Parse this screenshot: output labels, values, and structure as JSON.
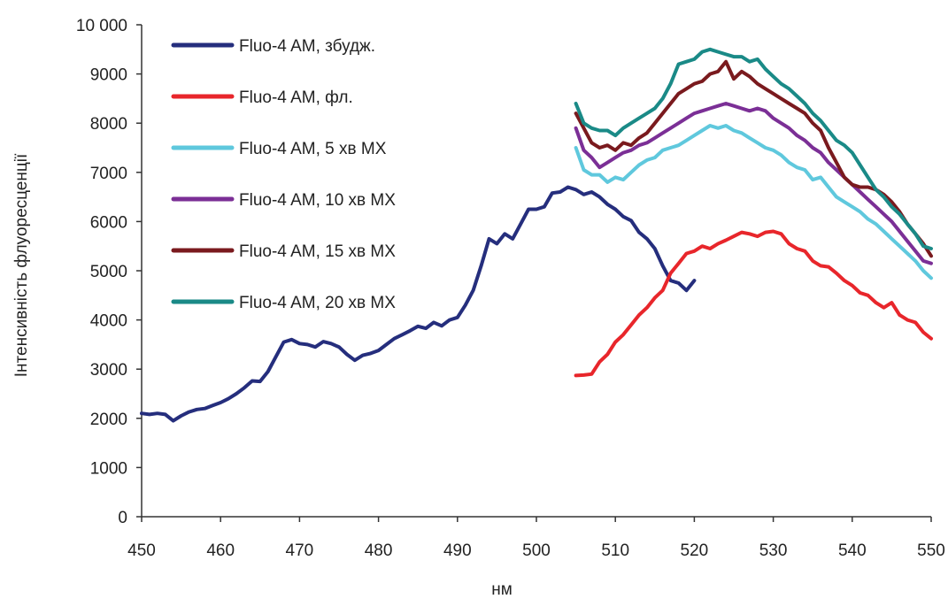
{
  "chart_data": {
    "type": "line",
    "title": "",
    "xlabel": "нм",
    "ylabel": "Інтенсивність флуоресценції",
    "xlim": [
      450,
      550
    ],
    "ylim": [
      0,
      10000
    ],
    "x_ticks": [
      "450",
      "460",
      "470",
      "480",
      "490",
      "500",
      "510",
      "520",
      "530",
      "540",
      "550"
    ],
    "y_ticks": [
      "0",
      "1000",
      "2000",
      "3000",
      "4000",
      "5000",
      "6000",
      "7000",
      "8000",
      "9000",
      "10 000"
    ],
    "grid": false,
    "legend_position": "top-left",
    "series": [
      {
        "name": "Fluo-4 AM, збудж.",
        "color": "#252e7d",
        "points": [
          [
            450,
            2100
          ],
          [
            451,
            2080
          ],
          [
            452,
            2100
          ],
          [
            453,
            2080
          ],
          [
            454,
            1950
          ],
          [
            455,
            2050
          ],
          [
            456,
            2130
          ],
          [
            457,
            2180
          ],
          [
            458,
            2200
          ],
          [
            459,
            2260
          ],
          [
            460,
            2320
          ],
          [
            461,
            2400
          ],
          [
            462,
            2500
          ],
          [
            463,
            2620
          ],
          [
            464,
            2760
          ],
          [
            465,
            2750
          ],
          [
            466,
            2950
          ],
          [
            467,
            3250
          ],
          [
            468,
            3550
          ],
          [
            469,
            3600
          ],
          [
            470,
            3520
          ],
          [
            471,
            3500
          ],
          [
            472,
            3450
          ],
          [
            473,
            3560
          ],
          [
            474,
            3520
          ],
          [
            475,
            3450
          ],
          [
            476,
            3300
          ],
          [
            477,
            3180
          ],
          [
            478,
            3280
          ],
          [
            479,
            3320
          ],
          [
            480,
            3380
          ],
          [
            481,
            3500
          ],
          [
            482,
            3620
          ],
          [
            483,
            3700
          ],
          [
            484,
            3780
          ],
          [
            485,
            3870
          ],
          [
            486,
            3830
          ],
          [
            487,
            3950
          ],
          [
            488,
            3880
          ],
          [
            489,
            4000
          ],
          [
            490,
            4050
          ],
          [
            491,
            4300
          ],
          [
            492,
            4600
          ],
          [
            493,
            5100
          ],
          [
            494,
            5650
          ],
          [
            495,
            5550
          ],
          [
            496,
            5750
          ],
          [
            497,
            5650
          ],
          [
            498,
            5950
          ],
          [
            499,
            6250
          ],
          [
            500,
            6250
          ],
          [
            501,
            6300
          ],
          [
            502,
            6580
          ],
          [
            503,
            6600
          ],
          [
            504,
            6700
          ],
          [
            505,
            6650
          ],
          [
            506,
            6550
          ],
          [
            507,
            6600
          ],
          [
            508,
            6500
          ],
          [
            509,
            6350
          ],
          [
            510,
            6250
          ],
          [
            511,
            6100
          ],
          [
            512,
            6020
          ],
          [
            513,
            5780
          ],
          [
            514,
            5650
          ],
          [
            515,
            5450
          ],
          [
            516,
            5100
          ],
          [
            517,
            4800
          ],
          [
            518,
            4750
          ],
          [
            519,
            4600
          ],
          [
            520,
            4800
          ]
        ]
      },
      {
        "name": "Fluo-4 AM, фл.",
        "color": "#e8262b",
        "points": [
          [
            505,
            2870
          ],
          [
            506,
            2880
          ],
          [
            507,
            2900
          ],
          [
            508,
            3150
          ],
          [
            509,
            3300
          ],
          [
            510,
            3550
          ],
          [
            511,
            3700
          ],
          [
            512,
            3900
          ],
          [
            513,
            4100
          ],
          [
            514,
            4250
          ],
          [
            515,
            4450
          ],
          [
            516,
            4600
          ],
          [
            517,
            4950
          ],
          [
            518,
            5150
          ],
          [
            519,
            5350
          ],
          [
            520,
            5400
          ],
          [
            521,
            5500
          ],
          [
            522,
            5450
          ],
          [
            523,
            5550
          ],
          [
            524,
            5620
          ],
          [
            525,
            5700
          ],
          [
            526,
            5780
          ],
          [
            527,
            5750
          ],
          [
            528,
            5700
          ],
          [
            529,
            5780
          ],
          [
            530,
            5800
          ],
          [
            531,
            5750
          ],
          [
            532,
            5550
          ],
          [
            533,
            5450
          ],
          [
            534,
            5400
          ],
          [
            535,
            5200
          ],
          [
            536,
            5100
          ],
          [
            537,
            5080
          ],
          [
            538,
            4950
          ],
          [
            539,
            4800
          ],
          [
            540,
            4700
          ],
          [
            541,
            4550
          ],
          [
            542,
            4500
          ],
          [
            543,
            4350
          ],
          [
            544,
            4250
          ],
          [
            545,
            4350
          ],
          [
            546,
            4100
          ],
          [
            547,
            4000
          ],
          [
            548,
            3950
          ],
          [
            549,
            3750
          ],
          [
            550,
            3620
          ]
        ]
      },
      {
        "name": "Fluo-4 AM, 5 хв MX",
        "color": "#5fc8dd",
        "points": [
          [
            505,
            7500
          ],
          [
            506,
            7050
          ],
          [
            507,
            6950
          ],
          [
            508,
            6950
          ],
          [
            509,
            6800
          ],
          [
            510,
            6900
          ],
          [
            511,
            6850
          ],
          [
            512,
            7000
          ],
          [
            513,
            7150
          ],
          [
            514,
            7250
          ],
          [
            515,
            7300
          ],
          [
            516,
            7450
          ],
          [
            517,
            7500
          ],
          [
            518,
            7550
          ],
          [
            519,
            7650
          ],
          [
            520,
            7750
          ],
          [
            521,
            7850
          ],
          [
            522,
            7950
          ],
          [
            523,
            7900
          ],
          [
            524,
            7950
          ],
          [
            525,
            7850
          ],
          [
            526,
            7800
          ],
          [
            527,
            7700
          ],
          [
            528,
            7600
          ],
          [
            529,
            7500
          ],
          [
            530,
            7450
          ],
          [
            531,
            7350
          ],
          [
            532,
            7200
          ],
          [
            533,
            7100
          ],
          [
            534,
            7050
          ],
          [
            535,
            6850
          ],
          [
            536,
            6900
          ],
          [
            537,
            6700
          ],
          [
            538,
            6500
          ],
          [
            539,
            6400
          ],
          [
            540,
            6300
          ],
          [
            541,
            6200
          ],
          [
            542,
            6050
          ],
          [
            543,
            5950
          ],
          [
            544,
            5800
          ],
          [
            545,
            5650
          ],
          [
            546,
            5500
          ],
          [
            547,
            5350
          ],
          [
            548,
            5200
          ],
          [
            549,
            5000
          ],
          [
            550,
            4850
          ]
        ]
      },
      {
        "name": "Fluo-4 AM, 10 хв MX",
        "color": "#7b2f96",
        "points": [
          [
            505,
            7900
          ],
          [
            506,
            7450
          ],
          [
            507,
            7300
          ],
          [
            508,
            7100
          ],
          [
            509,
            7200
          ],
          [
            510,
            7300
          ],
          [
            511,
            7400
          ],
          [
            512,
            7450
          ],
          [
            513,
            7550
          ],
          [
            514,
            7600
          ],
          [
            515,
            7700
          ],
          [
            516,
            7800
          ],
          [
            517,
            7900
          ],
          [
            518,
            8000
          ],
          [
            519,
            8100
          ],
          [
            520,
            8200
          ],
          [
            521,
            8250
          ],
          [
            522,
            8300
          ],
          [
            523,
            8350
          ],
          [
            524,
            8400
          ],
          [
            525,
            8350
          ],
          [
            526,
            8300
          ],
          [
            527,
            8250
          ],
          [
            528,
            8300
          ],
          [
            529,
            8250
          ],
          [
            530,
            8100
          ],
          [
            531,
            8000
          ],
          [
            532,
            7900
          ],
          [
            533,
            7750
          ],
          [
            534,
            7650
          ],
          [
            535,
            7500
          ],
          [
            536,
            7400
          ],
          [
            537,
            7200
          ],
          [
            538,
            7050
          ],
          [
            539,
            6900
          ],
          [
            540,
            6750
          ],
          [
            541,
            6600
          ],
          [
            542,
            6450
          ],
          [
            543,
            6300
          ],
          [
            544,
            6150
          ],
          [
            545,
            6000
          ],
          [
            546,
            5800
          ],
          [
            547,
            5600
          ],
          [
            548,
            5400
          ],
          [
            549,
            5200
          ],
          [
            550,
            5150
          ]
        ]
      },
      {
        "name": "Fluo-4 AM, 15 хв MX",
        "color": "#7a1a1e",
        "points": [
          [
            505,
            8200
          ],
          [
            506,
            7900
          ],
          [
            507,
            7600
          ],
          [
            508,
            7500
          ],
          [
            509,
            7550
          ],
          [
            510,
            7450
          ],
          [
            511,
            7600
          ],
          [
            512,
            7550
          ],
          [
            513,
            7700
          ],
          [
            514,
            7800
          ],
          [
            515,
            8000
          ],
          [
            516,
            8200
          ],
          [
            517,
            8400
          ],
          [
            518,
            8600
          ],
          [
            519,
            8700
          ],
          [
            520,
            8800
          ],
          [
            521,
            8850
          ],
          [
            522,
            9000
          ],
          [
            523,
            9050
          ],
          [
            524,
            9250
          ],
          [
            525,
            8900
          ],
          [
            526,
            9050
          ],
          [
            527,
            8950
          ],
          [
            528,
            8800
          ],
          [
            529,
            8700
          ],
          [
            530,
            8600
          ],
          [
            531,
            8500
          ],
          [
            532,
            8400
          ],
          [
            533,
            8300
          ],
          [
            534,
            8200
          ],
          [
            535,
            8000
          ],
          [
            536,
            7850
          ],
          [
            537,
            7500
          ],
          [
            538,
            7200
          ],
          [
            539,
            6900
          ],
          [
            540,
            6750
          ],
          [
            541,
            6700
          ],
          [
            542,
            6700
          ],
          [
            543,
            6650
          ],
          [
            544,
            6550
          ],
          [
            545,
            6400
          ],
          [
            546,
            6200
          ],
          [
            547,
            5950
          ],
          [
            548,
            5750
          ],
          [
            549,
            5550
          ],
          [
            550,
            5300
          ]
        ]
      },
      {
        "name": "Fluo-4 AM, 20 хв MX",
        "color": "#1a8a87",
        "points": [
          [
            505,
            8400
          ],
          [
            506,
            8000
          ],
          [
            507,
            7900
          ],
          [
            508,
            7850
          ],
          [
            509,
            7850
          ],
          [
            510,
            7750
          ],
          [
            511,
            7900
          ],
          [
            512,
            8000
          ],
          [
            513,
            8100
          ],
          [
            514,
            8200
          ],
          [
            515,
            8300
          ],
          [
            516,
            8500
          ],
          [
            517,
            8800
          ],
          [
            518,
            9200
          ],
          [
            519,
            9250
          ],
          [
            520,
            9300
          ],
          [
            521,
            9450
          ],
          [
            522,
            9500
          ],
          [
            523,
            9450
          ],
          [
            524,
            9400
          ],
          [
            525,
            9350
          ],
          [
            526,
            9350
          ],
          [
            527,
            9250
          ],
          [
            528,
            9300
          ],
          [
            529,
            9100
          ],
          [
            530,
            8950
          ],
          [
            531,
            8800
          ],
          [
            532,
            8700
          ],
          [
            533,
            8550
          ],
          [
            534,
            8400
          ],
          [
            535,
            8200
          ],
          [
            536,
            8050
          ],
          [
            537,
            7850
          ],
          [
            538,
            7650
          ],
          [
            539,
            7550
          ],
          [
            540,
            7400
          ],
          [
            541,
            7150
          ],
          [
            542,
            6900
          ],
          [
            543,
            6650
          ],
          [
            544,
            6500
          ],
          [
            545,
            6300
          ],
          [
            546,
            6150
          ],
          [
            547,
            5950
          ],
          [
            548,
            5750
          ],
          [
            549,
            5500
          ],
          [
            550,
            5450
          ]
        ]
      }
    ]
  }
}
